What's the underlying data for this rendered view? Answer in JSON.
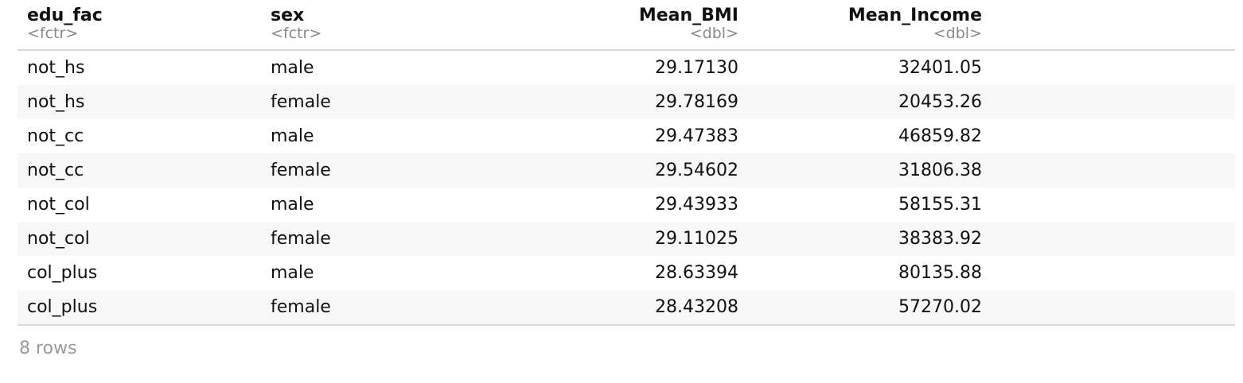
{
  "table": {
    "columns": [
      {
        "name": "edu_fac",
        "type": "<fctr>",
        "align": "left"
      },
      {
        "name": "sex",
        "type": "<fctr>",
        "align": "left"
      },
      {
        "name": "Mean_BMI",
        "type": "<dbl>",
        "align": "right"
      },
      {
        "name": "Mean_Income",
        "type": "<dbl>",
        "align": "right"
      }
    ],
    "rows": [
      [
        "not_hs",
        "male",
        "29.17130",
        "32401.05"
      ],
      [
        "not_hs",
        "female",
        "29.78169",
        "20453.26"
      ],
      [
        "not_cc",
        "male",
        "29.47383",
        "46859.82"
      ],
      [
        "not_cc",
        "female",
        "29.54602",
        "31806.38"
      ],
      [
        "not_col",
        "male",
        "29.43933",
        "58155.31"
      ],
      [
        "not_col",
        "female",
        "29.11025",
        "38383.92"
      ],
      [
        "col_plus",
        "male",
        "28.63394",
        "80135.88"
      ],
      [
        "col_plus",
        "female",
        "28.43208",
        "57270.02"
      ]
    ]
  },
  "footer": {
    "row_count": "8 rows"
  },
  "colors": {
    "text": "#111111",
    "type_label": "#8a8a8a",
    "stripe": "#f8f8f8",
    "rule": "#d8d8d8",
    "footer": "#9a9a9a"
  }
}
